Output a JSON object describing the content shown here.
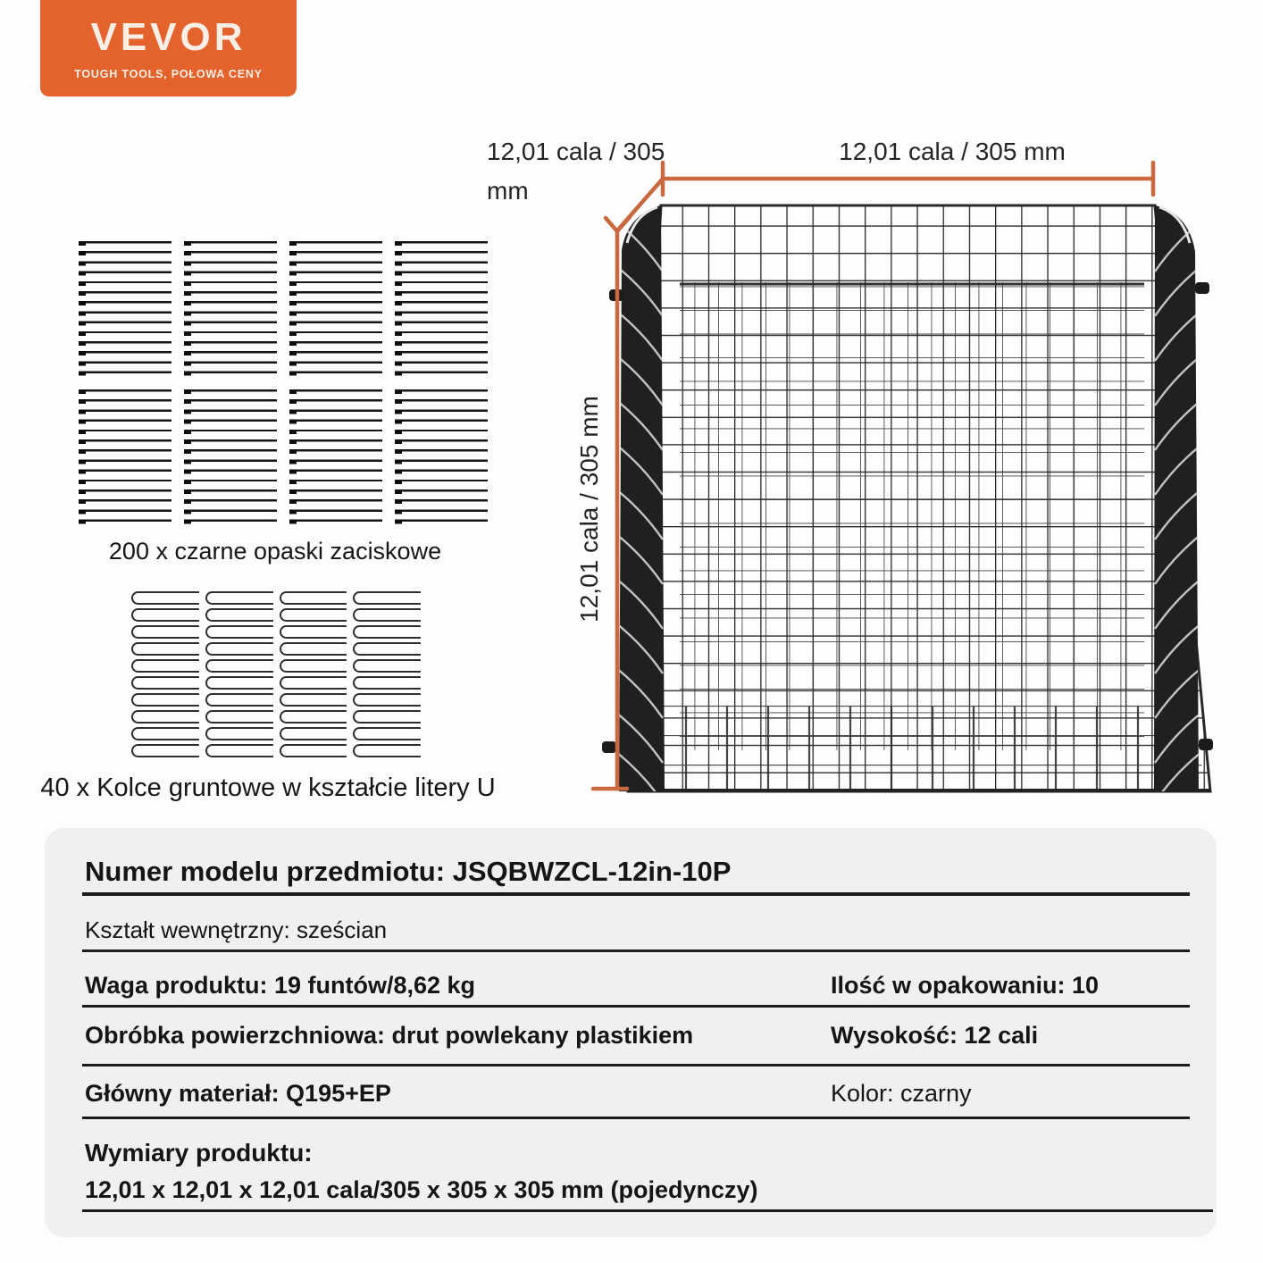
{
  "logo": {
    "brand": "VEVOR",
    "tagline": "TOUGH TOOLS, POŁOWA CENY",
    "bg_color": "#E4622B"
  },
  "accessories": {
    "ties": {
      "caption": "200 x czarne opaski zaciskowe"
    },
    "stakes": {
      "caption": "40 x Kolce gruntowe w kształcie litery U"
    }
  },
  "diagram": {
    "depth_label_line1": "12,01 cala / 305",
    "depth_label_line2": "mm",
    "width_label": "12,01 cala / 305 mm",
    "height_label": "12,01 cala / 305 mm",
    "dimension_color": "#C8693F",
    "wire_color": "#292929"
  },
  "spec_table": {
    "model": "Numer modelu przedmiotu: JSQBWZCL-12in-10P",
    "shape": "Kształt wewnętrzny: sześcian",
    "weight": "Waga produktu: 19 funtów/8,62 kg",
    "quantity": "Ilość w opakowaniu: 10",
    "surface": "Obróbka powierzchniowa: drut powlekany plastikiem",
    "height": "Wysokość: 12 cali",
    "material": "Główny materiał: Q195+EP",
    "color": "Kolor: czarny",
    "dimensions_label": "Wymiary produktu:",
    "dimensions_value": "12,01 x 12,01 x 12,01 cala/305 x 305 x 305 mm (pojedynczy)"
  }
}
